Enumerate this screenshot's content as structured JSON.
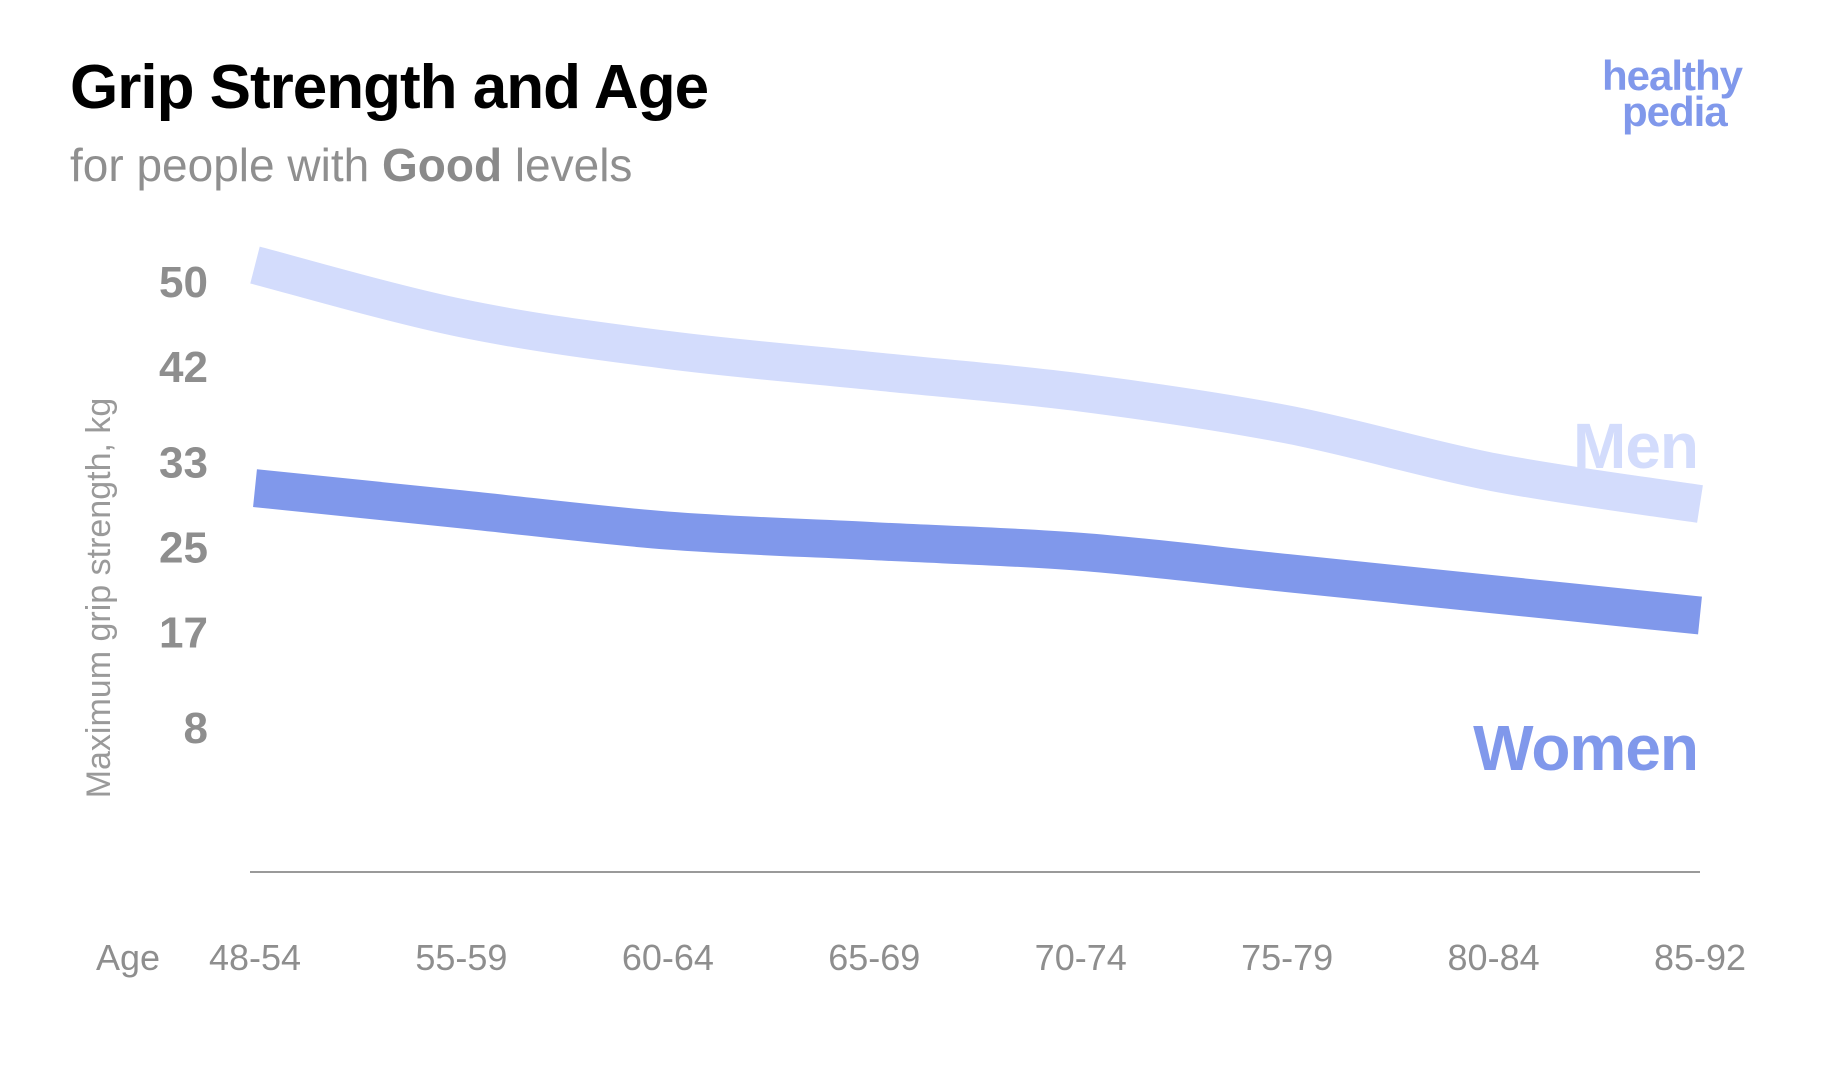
{
  "header": {
    "title": "Grip Strength and Age",
    "subtitle_prefix": "for people with ",
    "subtitle_bold": "Good",
    "subtitle_suffix": " levels"
  },
  "logo": {
    "line1": "healthy",
    "line2": "pedia",
    "color": "#8098eb"
  },
  "chart_data": {
    "type": "line",
    "title": "Grip Strength and Age",
    "subtitle": "for people with Good levels",
    "ylabel": "Maximum grip strength, kg",
    "xlabel": "Age",
    "categories": [
      "48-54",
      "55-59",
      "60-64",
      "65-69",
      "70-74",
      "75-79",
      "80-84",
      "85-92"
    ],
    "yticks": [
      50,
      42,
      33,
      25,
      17,
      8
    ],
    "series": [
      {
        "name": "Men",
        "color": "#d3dcfc",
        "values": [
          51.5,
          46.5,
          43.5,
          41.5,
          39.5,
          36.5,
          32.0,
          29.0
        ]
      },
      {
        "name": "Women",
        "color": "#8098eb",
        "values": [
          30.5,
          28.5,
          26.5,
          25.5,
          24.5,
          22.5,
          20.5,
          18.5
        ]
      }
    ],
    "grid": false,
    "legend": "inline-right"
  }
}
